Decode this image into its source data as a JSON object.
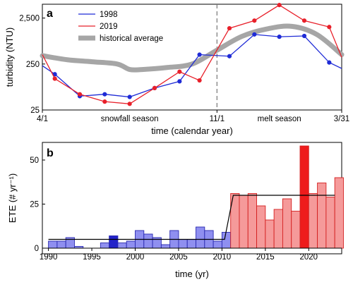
{
  "chart_data": [
    {
      "panel": "a",
      "type": "line",
      "ylabel": "turbidity (NTU)",
      "xlabel": "time (calendar year)",
      "yscale": "log",
      "ylim": [
        25,
        5000
      ],
      "yticks": [
        {
          "value": 25,
          "label": "25"
        },
        {
          "value": 250,
          "label": "250"
        },
        {
          "value": 2500,
          "label": "2,500"
        }
      ],
      "x_range_months": [
        0,
        12
      ],
      "xticks": [
        {
          "month": 0,
          "label": "4/1"
        },
        {
          "month": 7,
          "label": "11/1"
        },
        {
          "month": 12,
          "label": "3/31"
        }
      ],
      "divider_month": 7,
      "seasons": [
        {
          "label": "snowfall season",
          "month": 3.5
        },
        {
          "label": "melt season",
          "month": 9.5
        }
      ],
      "legend_position": "top-left",
      "series": [
        {
          "name": "1998",
          "color": "#1f2bd6",
          "marker": "circle",
          "x": [
            0,
            0.5,
            1.5,
            2.5,
            3.5,
            4.5,
            5.5,
            6.3,
            7.5,
            8.5,
            9.5,
            10.5,
            11.5,
            12
          ],
          "y": [
            230,
            150,
            50,
            55,
            48,
            75,
            105,
            400,
            370,
            1100,
            980,
            1020,
            270,
            200
          ]
        },
        {
          "name": "2019",
          "color": "#e8202a",
          "marker": "circle",
          "x": [
            0,
            0.5,
            1.5,
            2.5,
            3.5,
            4.5,
            5.5,
            6.3,
            7.5,
            8.5,
            9.5,
            10.5,
            11.5,
            12
          ],
          "y": [
            400,
            120,
            55,
            38,
            34,
            75,
            170,
            110,
            1500,
            2200,
            4800,
            2200,
            1600,
            350
          ]
        },
        {
          "name": "historical average",
          "color": "#a6a6a6",
          "marker": "none",
          "x": [
            0,
            1,
            2,
            3,
            3.5,
            4,
            5,
            6,
            7,
            8,
            9,
            10,
            11,
            12
          ],
          "y": [
            380,
            310,
            280,
            250,
            190,
            190,
            210,
            250,
            500,
            1000,
            1450,
            1650,
            1100,
            400
          ]
        }
      ]
    },
    {
      "panel": "b",
      "type": "bar",
      "ylabel": "ETE (# yr⁻¹)",
      "xlabel": "time (yr)",
      "xlim": [
        1989.3,
        2023.8
      ],
      "ylim": [
        0,
        60
      ],
      "xticks": [
        1990,
        1995,
        2000,
        2005,
        2010,
        2015,
        2020
      ],
      "yticks": [
        0,
        25,
        50
      ],
      "colors": {
        "early_fill": "#8f8ff0",
        "early_edge": "#2a2ab0",
        "late_fill": "#f59a9a",
        "late_edge": "#d42020",
        "early_highlight": "#2323c9",
        "late_highlight": "#ee1c1c",
        "fit_line": "#000000"
      },
      "bars": [
        {
          "year": 1990,
          "value": 0,
          "period": "early"
        },
        {
          "year": 1991,
          "value": 4,
          "period": "early"
        },
        {
          "year": 1992,
          "value": 4,
          "period": "early"
        },
        {
          "year": 1993,
          "value": 6,
          "period": "early"
        },
        {
          "year": 1994,
          "value": 1,
          "period": "early"
        },
        {
          "year": 1995,
          "value": 0,
          "period": "early"
        },
        {
          "year": 1996,
          "value": 0,
          "period": "early"
        },
        {
          "year": 1997,
          "value": 3,
          "period": "early"
        },
        {
          "year": 1998,
          "value": 7,
          "period": "early",
          "highlight": true
        },
        {
          "year": 1999,
          "value": 3,
          "period": "early"
        },
        {
          "year": 2000,
          "value": 4,
          "period": "early"
        },
        {
          "year": 2001,
          "value": 10,
          "period": "early"
        },
        {
          "year": 2002,
          "value": 8,
          "period": "early"
        },
        {
          "year": 2003,
          "value": 6,
          "period": "early"
        },
        {
          "year": 2004,
          "value": 2,
          "period": "early"
        },
        {
          "year": 2005,
          "value": 10,
          "period": "early"
        },
        {
          "year": 2006,
          "value": 5,
          "period": "early"
        },
        {
          "year": 2007,
          "value": 5,
          "period": "early"
        },
        {
          "year": 2008,
          "value": 12,
          "period": "early"
        },
        {
          "year": 2009,
          "value": 10,
          "period": "early"
        },
        {
          "year": 2010,
          "value": 4,
          "period": "early"
        },
        {
          "year": 2011,
          "value": 9,
          "period": "early"
        },
        {
          "year": 2012,
          "value": 31,
          "period": "late"
        },
        {
          "year": 2013,
          "value": 30,
          "period": "late"
        },
        {
          "year": 2014,
          "value": 31,
          "period": "late"
        },
        {
          "year": 2015,
          "value": 24,
          "period": "late"
        },
        {
          "year": 2016,
          "value": 16,
          "period": "late"
        },
        {
          "year": 2017,
          "value": 22,
          "period": "late"
        },
        {
          "year": 2018,
          "value": 28,
          "period": "late"
        },
        {
          "year": 2019,
          "value": 21,
          "period": "late"
        },
        {
          "year": 2020,
          "value": 58,
          "period": "late",
          "highlight": true
        },
        {
          "year": 2021,
          "value": 31,
          "period": "late"
        },
        {
          "year": 2022,
          "value": 37,
          "period": "late"
        },
        {
          "year": 2023,
          "value": 29,
          "period": "late"
        },
        {
          "year": 2024,
          "value": 40,
          "period": "late"
        }
      ],
      "fit_line": {
        "x": [
          1990,
          2010.3,
          2011.3,
          2023
        ],
        "y": [
          5,
          5,
          30,
          30
        ]
      }
    }
  ]
}
